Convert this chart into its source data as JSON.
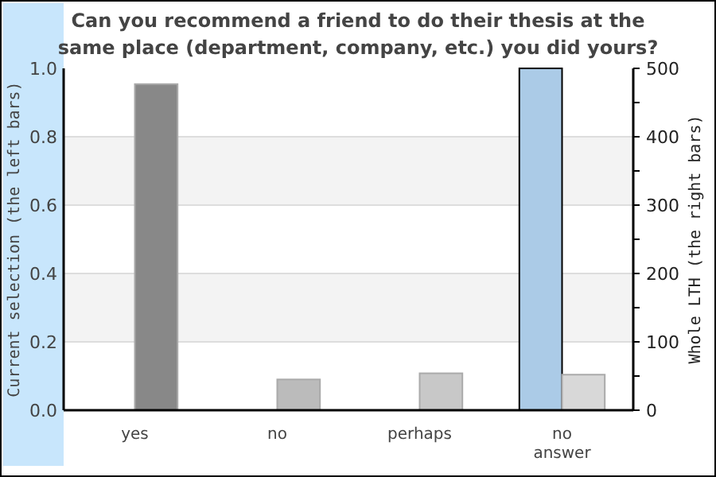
{
  "chart_data": {
    "type": "bar",
    "title": "Can you recommend a friend to do their thesis at the same place (department, company, etc.) you did yours?",
    "ylabel": "Current selection (the left bars)",
    "y2label": "Whole LTH (the right bars)",
    "categories": [
      "yes",
      "no",
      "perhaps",
      "no answer"
    ],
    "series": [
      {
        "color": "#abcbe7",
        "values": [
          0,
          0,
          0,
          1.0
        ]
      },
      {
        "axis": "y2",
        "colors": [
          "#888888",
          "#bbbbbb",
          "#c8c8c8",
          "#d8d8d8"
        ],
        "values": [
          477,
          45,
          54,
          52
        ]
      }
    ],
    "ylim": [
      0,
      1.0
    ],
    "yticks": [
      {
        "value": 0,
        "label": "0.0"
      },
      {
        "value": 0.2,
        "label": "0.2"
      },
      {
        "value": 0.4,
        "label": "0.4"
      },
      {
        "value": 0.6,
        "label": "0.6"
      },
      {
        "value": 0.8,
        "label": "0.8"
      },
      {
        "value": 1.0,
        "label": "1.0"
      }
    ],
    "y2lim": [
      0,
      500
    ],
    "y2ticks": [
      0,
      {
        "value": 50,
        "label": null
      },
      100,
      {
        "value": 150,
        "label": null
      },
      200,
      {
        "value": 250,
        "label": null
      },
      300,
      {
        "value": 350,
        "label": null
      },
      400,
      {
        "value": 450,
        "label": null
      },
      500
    ],
    "grid": "y"
  }
}
